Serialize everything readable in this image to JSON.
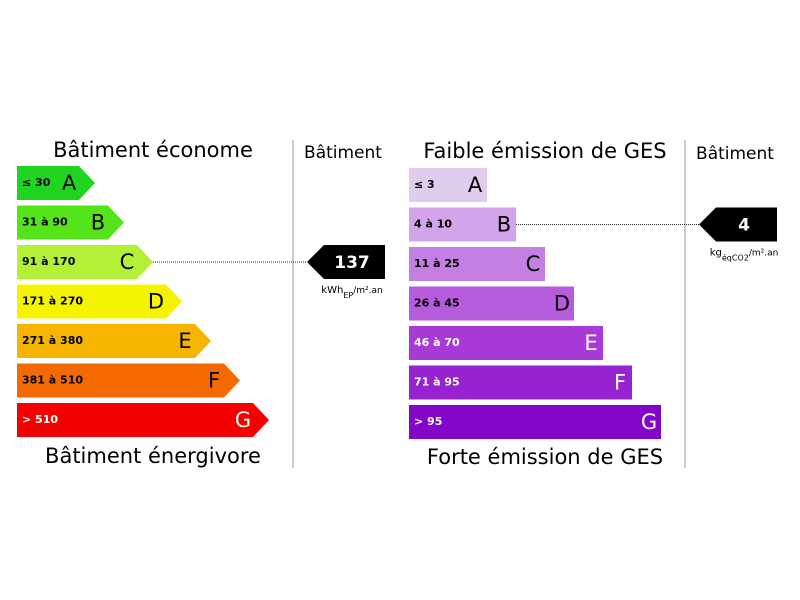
{
  "energy": {
    "top_label": "Bâtiment économe",
    "bottom_label": "Bâtiment énergivore",
    "header": "Bâtiment",
    "classes": [
      {
        "range": "≤ 30",
        "letter": "A",
        "color": "#1fd51f",
        "text_color": "#000"
      },
      {
        "range": "31 à 90",
        "letter": "B",
        "color": "#55e41a",
        "text_color": "#000"
      },
      {
        "range": "91 à 170",
        "letter": "C",
        "color": "#b4f036",
        "text_color": "#000"
      },
      {
        "range": "171 à 270",
        "letter": "D",
        "color": "#f4f400",
        "text_color": "#000"
      },
      {
        "range": "271 à 380",
        "letter": "E",
        "color": "#f4b400",
        "text_color": "#000"
      },
      {
        "range": "381 à 510",
        "letter": "F",
        "color": "#f46a00",
        "text_color": "#000"
      },
      {
        "range": "> 510",
        "letter": "G",
        "color": "#f40000",
        "text_color": "#fff"
      }
    ],
    "indicator": {
      "value": 137,
      "class_index": 2,
      "unit": {
        "main": "kWh",
        "sub": "EP",
        "rest": "/m².an"
      }
    }
  },
  "ges": {
    "top_label": "Faible émission de GES",
    "bottom_label": "Forte émission de GES",
    "header": "Bâtiment",
    "classes": [
      {
        "range": "≤ 3",
        "letter": "A",
        "color": "#e0cdee",
        "text_color": "#000"
      },
      {
        "range": "4 à 10",
        "letter": "B",
        "color": "#d3a4ea",
        "text_color": "#000"
      },
      {
        "range": "11 à 25",
        "letter": "C",
        "color": "#c47fe2",
        "text_color": "#000"
      },
      {
        "range": "26 à 45",
        "letter": "D",
        "color": "#b55bdc",
        "text_color": "#000"
      },
      {
        "range": "46 à 70",
        "letter": "E",
        "color": "#a83bd8",
        "text_color": "#fff"
      },
      {
        "range": "71 à 95",
        "letter": "F",
        "color": "#9722d0",
        "text_color": "#fff"
      },
      {
        "range": "> 95",
        "letter": "G",
        "color": "#8406c9",
        "text_color": "#fff"
      }
    ],
    "indicator": {
      "value": 4,
      "class_index": 1,
      "unit": {
        "main": "kg",
        "sub": "éqCO2",
        "rest": "/m².an"
      }
    }
  }
}
